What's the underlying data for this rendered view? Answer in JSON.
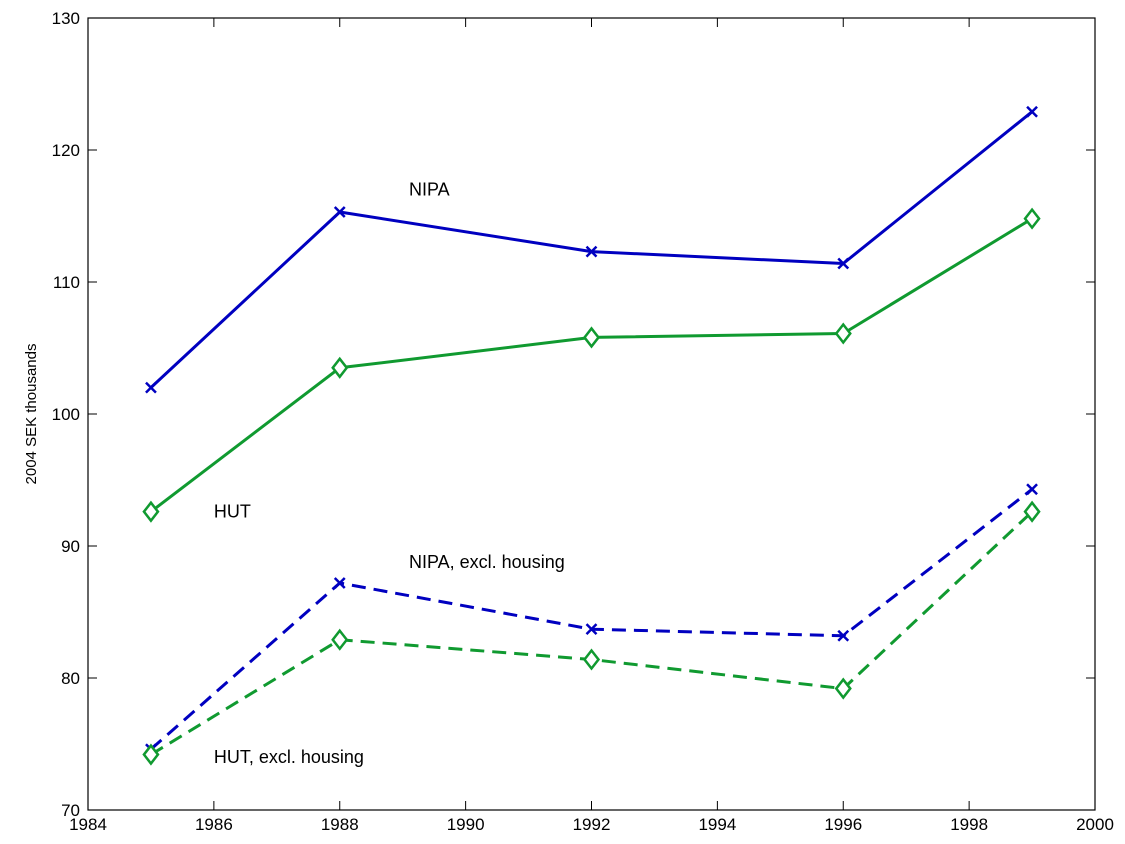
{
  "chart_data": {
    "type": "line",
    "title": "",
    "xlabel": "",
    "ylabel": "2004 SEK thousands",
    "xlim": [
      1984,
      2000
    ],
    "ylim": [
      70,
      130
    ],
    "xticks": [
      1984,
      1986,
      1988,
      1990,
      1992,
      1994,
      1996,
      1998,
      2000
    ],
    "yticks": [
      70,
      80,
      90,
      100,
      110,
      120,
      130
    ],
    "grid": false,
    "legend": "none",
    "x": [
      1985,
      1988,
      1992,
      1996,
      1999
    ],
    "series": [
      {
        "name": "NIPA",
        "values": [
          102.0,
          115.3,
          112.3,
          111.4,
          122.9
        ],
        "color": "#0000c0",
        "dash": "solid",
        "marker": "x"
      },
      {
        "name": "HUT",
        "values": [
          92.6,
          103.5,
          105.8,
          106.1,
          114.8
        ],
        "color": "#109a30",
        "dash": "solid",
        "marker": "diamond"
      },
      {
        "name": "NIPA, excl. housing",
        "values": [
          74.6,
          87.2,
          83.7,
          83.2,
          94.3
        ],
        "color": "#0000c0",
        "dash": "dashed",
        "marker": "x"
      },
      {
        "name": "HUT, excl. housing",
        "values": [
          74.2,
          82.9,
          81.4,
          79.2,
          92.6
        ],
        "color": "#109a30",
        "dash": "dashed",
        "marker": "diamond"
      }
    ],
    "annotations": [
      {
        "text": "NIPA",
        "x": 1989.1,
        "y": 117.0
      },
      {
        "text": "HUT",
        "x": 1986.0,
        "y": 92.6
      },
      {
        "text": "NIPA, excl. housing",
        "x": 1989.1,
        "y": 88.8
      },
      {
        "text": "HUT, excl. housing",
        "x": 1986.0,
        "y": 74.0
      }
    ]
  }
}
